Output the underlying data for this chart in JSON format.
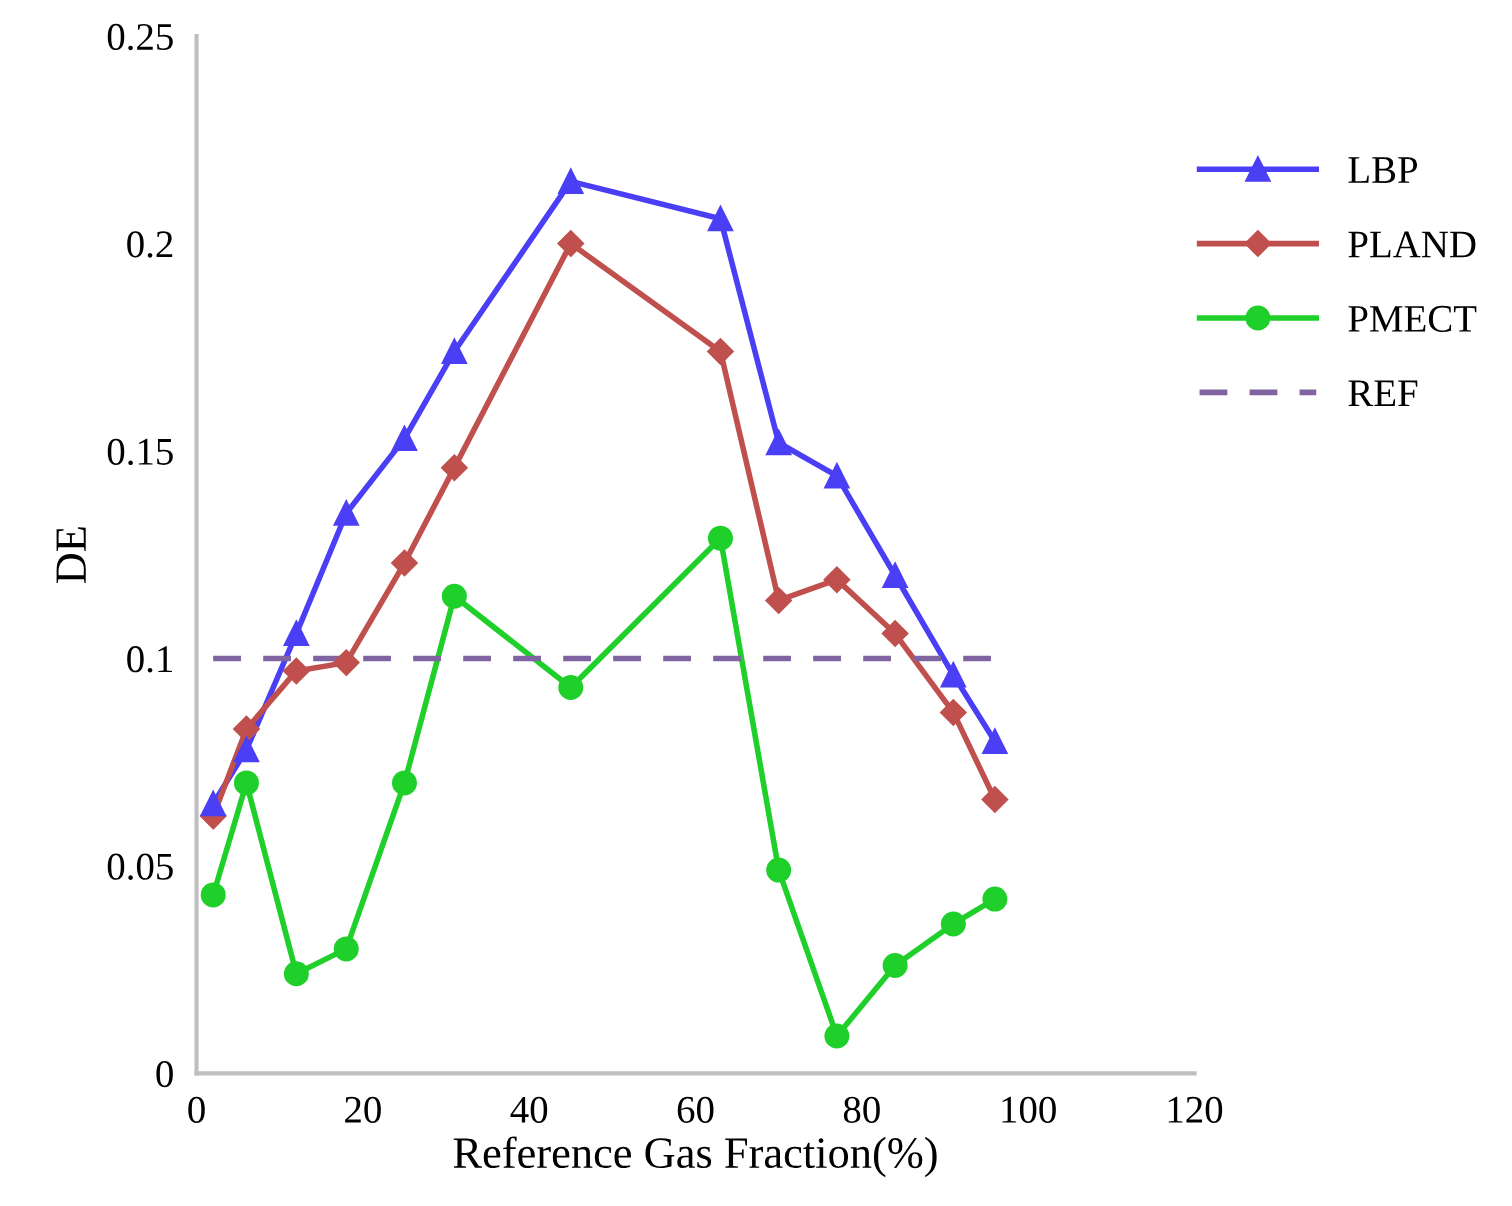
{
  "chart_data": {
    "type": "line",
    "xlabel": "Reference Gas Fraction(%)",
    "ylabel": "DE",
    "x": [
      2,
      6,
      12,
      18,
      25,
      31,
      45,
      63,
      70,
      77,
      84,
      91,
      96
    ],
    "series": [
      {
        "name": "LBP",
        "color": "#4b3ff5",
        "marker": "triangle",
        "values": [
          0.065,
          0.078,
          0.106,
          0.135,
          0.153,
          0.174,
          0.215,
          0.206,
          0.152,
          0.144,
          0.12,
          0.096,
          0.08
        ]
      },
      {
        "name": "PLAND",
        "color": "#c0504d",
        "marker": "diamond",
        "values": [
          0.062,
          0.083,
          0.097,
          0.099,
          0.123,
          0.146,
          0.2,
          0.174,
          0.114,
          0.119,
          0.106,
          0.087,
          0.066
        ]
      },
      {
        "name": "PMECT",
        "color": "#1fcf2a",
        "marker": "circle",
        "values": [
          0.043,
          0.07,
          0.024,
          0.03,
          0.07,
          0.115,
          0.093,
          0.129,
          0.049,
          0.009,
          0.026,
          0.036,
          0.042
        ]
      },
      {
        "name": "REF",
        "color": "#8064a2",
        "marker": "none",
        "line_style": "dashed",
        "values": [
          0.1,
          0.1,
          0.1,
          0.1,
          0.1,
          0.1,
          0.1,
          0.1,
          0.1,
          0.1,
          0.1,
          0.1,
          0.1
        ]
      }
    ],
    "xlim": [
      0,
      120
    ],
    "xticks": [
      0,
      20,
      40,
      60,
      80,
      100,
      120
    ],
    "ylim": [
      0,
      0.25
    ],
    "yticks": [
      0,
      0.05,
      0.1,
      0.15,
      0.2,
      0.25
    ],
    "grid": false,
    "legend": "top right"
  }
}
